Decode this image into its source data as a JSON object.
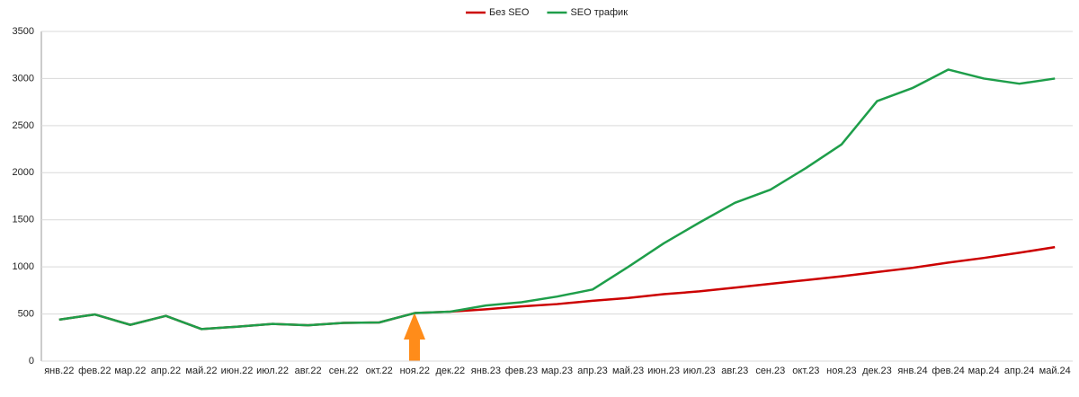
{
  "chart_data": {
    "type": "line",
    "categories": [
      "янв.22",
      "фев.22",
      "мар.22",
      "апр.22",
      "май.22",
      "июн.22",
      "июл.22",
      "авг.22",
      "сен.22",
      "окт.22",
      "ноя.22",
      "дек.22",
      "янв.23",
      "фев.23",
      "мар.23",
      "апр.23",
      "май.23",
      "июн.23",
      "июл.23",
      "авг.23",
      "сен.23",
      "окт.23",
      "ноя.23",
      "дек.23",
      "янв.24",
      "фев.24",
      "мар.24",
      "апр.24",
      "май.24"
    ],
    "series": [
      {
        "name": "Без SEO",
        "color": "#cc0000",
        "values": [
          440,
          495,
          385,
          480,
          340,
          365,
          395,
          380,
          405,
          410,
          510,
          525,
          550,
          580,
          605,
          640,
          670,
          710,
          740,
          780,
          820,
          860,
          900,
          945,
          990,
          1045,
          1095,
          1150,
          1210
        ]
      },
      {
        "name": "SEO трафик",
        "color": "#1e9e4a",
        "values": [
          440,
          495,
          385,
          480,
          340,
          365,
          395,
          380,
          405,
          410,
          510,
          525,
          590,
          625,
          685,
          760,
          1000,
          1250,
          1470,
          1680,
          1820,
          2050,
          2300,
          2760,
          2900,
          3095,
          3000,
          2945,
          3000
        ]
      }
    ],
    "ylim": [
      0,
      3500
    ],
    "yticks": [
      0,
      500,
      1000,
      1500,
      2000,
      2500,
      3000,
      3500
    ],
    "grid": true,
    "legend": "top"
  }
}
